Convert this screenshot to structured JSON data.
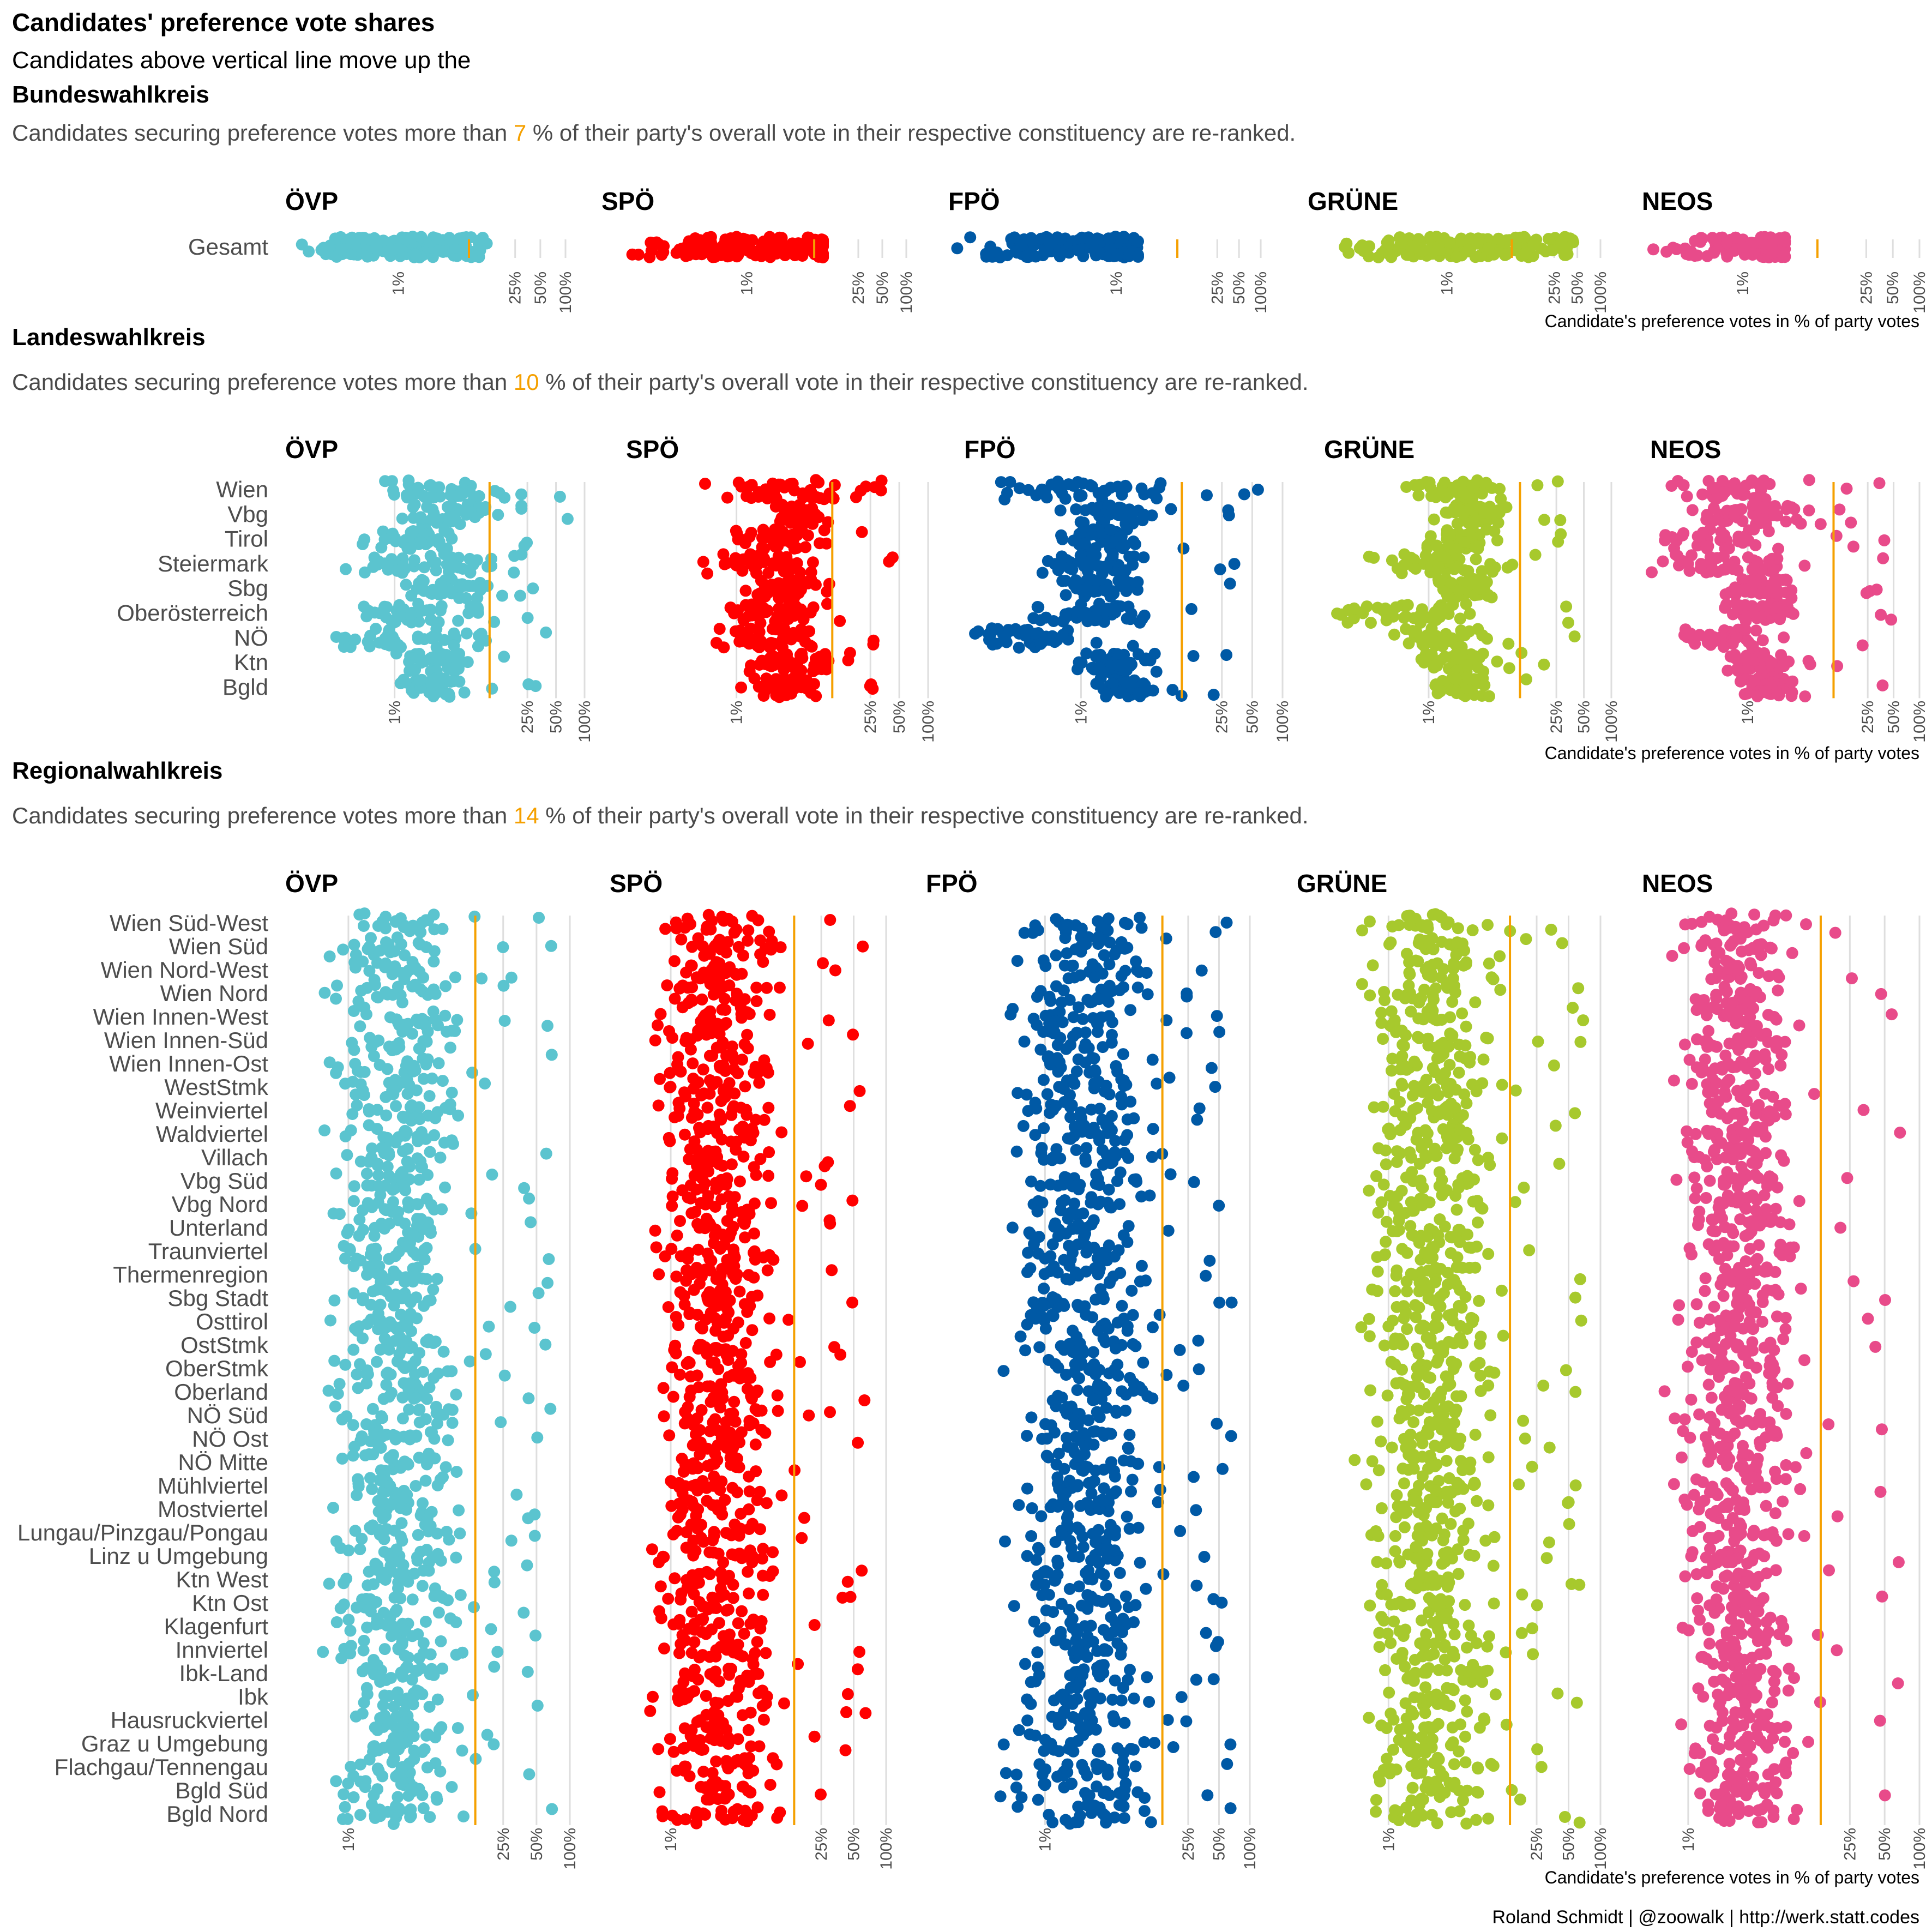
{
  "title": "Candidates' preference vote shares",
  "subtitle_line1": "Candidates above vertical line move up the",
  "subtitle_line2": "Bundeswahlkreis",
  "caption": "Roland Schmidt | @zoowalk | http://werk.statt.codes",
  "x_axis_label": "Candidate's preference votes in % of party votes",
  "desc_before": "Candidates securing preference votes more than",
  "desc_after": "% of their party's overall vote in their respective constituency are re-ranked.",
  "colors": {
    "ÖVP": "#5bc4cf",
    "SPÖ": "#ff0000",
    "FPÖ": "#0059a5",
    "GRÜNE": "#a7c92d",
    "NEOS": "#e84b8a",
    "threshold": "#f5a000",
    "grid": "#dedede"
  },
  "chart_data": {
    "type": "scatter",
    "description": "Jittered strip plot of candidate preference-vote shares per party and constituency level; log-scaled x axis.",
    "x_scale": "log",
    "x_ticks": [
      {
        "value": 1,
        "label": "1%"
      },
      {
        "value": 25,
        "label": "25%"
      },
      {
        "value": 50,
        "label": "50%"
      },
      {
        "value": 100,
        "label": "100%"
      }
    ],
    "parties": [
      "ÖVP",
      "SPÖ",
      "FPÖ",
      "GRÜNE",
      "NEOS"
    ],
    "panels": [
      {
        "level": "Bundeswahlkreis",
        "show_heading": false,
        "threshold": 7,
        "rows": [
          "Gesamt"
        ],
        "xlim": {
          "ÖVP": [
            0.03,
            100
          ],
          "SPÖ": [
            0.01,
            100
          ],
          "FPÖ": [
            0.003,
            100
          ],
          "GRÜNE": [
            0.01,
            100
          ],
          "NEOS": [
            0.05,
            100
          ]
        },
        "ranges": {
          "ÖVP": {
            "Gesamt": [
              0.035,
              1.2,
              12,
              70
            ]
          },
          "SPÖ": {
            "Gesamt": [
              0.012,
              4,
              9,
              12
            ]
          },
          "FPÖ": {
            "Gesamt": [
              0.003,
              0.5,
              2,
              40
            ]
          },
          "GRÜNE": {
            "Gesamt": [
              0.012,
              1.3,
              45,
              60
            ]
          },
          "NEOS": {
            "Gesamt": [
              0.055,
              1.6,
              3,
              80
            ]
          }
        }
      },
      {
        "level": "Landeswahlkreis",
        "show_heading": true,
        "threshold": 10,
        "rows": [
          "Wien",
          "Vbg",
          "Tirol",
          "Steiermark",
          "Sbg",
          "Oberösterreich",
          "NÖ",
          "Ktn",
          "Bgld"
        ],
        "xlim": {
          "ÖVP": [
            0.05,
            100
          ],
          "SPÖ": [
            0.05,
            100
          ],
          "FPÖ": [
            0.05,
            100
          ],
          "GRÜNE": [
            0.05,
            100
          ],
          "NEOS": [
            0.05,
            100
          ]
        },
        "ranges": {
          "ÖVP": {
            "Wien": [
              0.2,
              5,
              70,
              4
            ],
            "Vbg": [
              1,
              6,
              70,
              3
            ],
            "Tirol": [
              0.3,
              3,
              70,
              2
            ],
            "Steiermark": [
              0.1,
              4,
              30,
              3
            ],
            "Sbg": [
              0.8,
              6,
              35,
              2
            ],
            "Oberösterreich": [
              0.2,
              3,
              40,
              3
            ],
            "NÖ": [
              0.06,
              3,
              45,
              3
            ],
            "Ktn": [
              0.8,
              4,
              40,
              2
            ],
            "Bgld": [
              1,
              3,
              45,
              3
            ]
          },
          "SPÖ": {
            "Wien": [
              0.3,
              6,
              40,
              3
            ],
            "Vbg": [
              2,
              6,
              40,
              2
            ],
            "Tirol": [
              0.5,
              4,
              40,
              3
            ],
            "Steiermark": [
              0.3,
              3,
              60,
              3
            ],
            "Sbg": [
              1,
              4,
              60,
              3
            ],
            "Oberösterreich": [
              0.5,
              3,
              30,
              2
            ],
            "NÖ": [
              0.5,
              3,
              40,
              3
            ],
            "Ktn": [
              1,
              6,
              50,
              2
            ],
            "Bgld": [
              1,
              4,
              50,
              3
            ]
          },
          "FPÖ": {
            "Wien": [
              0.08,
              2,
              60,
              4
            ],
            "Vbg": [
              0.5,
              3,
              60,
              4
            ],
            "Tirol": [
              0.4,
              2,
              30,
              3
            ],
            "Steiermark": [
              0.3,
              2,
              40,
              3
            ],
            "Sbg": [
              0.5,
              2,
              35,
              3
            ],
            "Oberösterreich": [
              0.2,
              2,
              45,
              3
            ],
            "NÖ": [
              0.05,
              0.4,
              60,
              3
            ],
            "Ktn": [
              0.6,
              3,
              40,
              3
            ],
            "Bgld": [
              1,
              3,
              60,
              3
            ]
          },
          "GRÜNE": {
            "Wien": [
              0.3,
              3,
              30,
              4
            ],
            "Vbg": [
              1,
              4,
              30,
              2
            ],
            "Tirol": [
              0.5,
              3,
              40,
              3
            ],
            "Steiermark": [
              0.15,
              2,
              45,
              3
            ],
            "Sbg": [
              1,
              3,
              40,
              2
            ],
            "Oberösterreich": [
              0.05,
              1,
              45,
              3
            ],
            "NÖ": [
              0.3,
              2,
              40,
              3
            ],
            "Ktn": [
              0.6,
              3,
              45,
              3
            ],
            "Bgld": [
              0.8,
              3,
              45,
              2
            ]
          },
          "NEOS": {
            "Wien": [
              0.05,
              1,
              50,
              4
            ],
            "Vbg": [
              0.1,
              2,
              40,
              3
            ],
            "Tirol": [
              0.06,
              1,
              45,
              3
            ],
            "Steiermark": [
              0.05,
              1,
              50,
              2
            ],
            "Sbg": [
              0.3,
              2,
              45,
              3
            ],
            "Oberösterreich": [
              0.3,
              2,
              60,
              3
            ],
            "NÖ": [
              0.1,
              0.8,
              40,
              3
            ],
            "Ktn": [
              0.3,
              2,
              35,
              3
            ],
            "Bgld": [
              0.5,
              2,
              40,
              3
            ]
          }
        }
      },
      {
        "level": "Regionalwahlkreis",
        "show_heading": true,
        "threshold": 14,
        "rows": [
          "Wien Süd-West",
          "Wien Süd",
          "Wien Nord-West",
          "Wien Nord",
          "Wien Innen-West",
          "Wien Innen-Süd",
          "Wien Innen-Ost",
          "WestStmk",
          "Weinviertel",
          "Waldviertel",
          "Villach",
          "Vbg Süd",
          "Vbg Nord",
          "Unterland",
          "Traunviertel",
          "Thermenregion",
          "Sbg Stadt",
          "Osttirol",
          "OstStmk",
          "OberStmk",
          "Oberland",
          "NÖ Süd",
          "NÖ Ost",
          "NÖ Mitte",
          "Mühlviertel",
          "Mostviertel",
          "Lungau/Pinzgau/Pongau",
          "Linz u Umgebung",
          "Ktn West",
          "Ktn Ost",
          "Klagenfurt",
          "Innviertel",
          "Ibk-Land",
          "Ibk",
          "Hausruckviertel",
          "Graz u Umgebung",
          "Flachgau/Tennengau",
          "Bgld Süd",
          "Bgld Nord"
        ],
        "xlim": {
          "ÖVP": [
            0.2,
            100
          ],
          "SPÖ": [
            0.2,
            100
          ],
          "FPÖ": [
            0.05,
            100
          ],
          "GRÜNE": [
            0.1,
            100
          ],
          "NEOS": [
            0.3,
            100
          ]
        },
        "ranges": {
          "ÖVP": {
            "_default": [
              0.5,
              4,
              70,
              2
            ]
          },
          "SPÖ": {
            "_default": [
              0.5,
              4,
              70,
              2
            ]
          },
          "FPÖ": {
            "_default": [
              0.3,
              4,
              70,
              2
            ]
          },
          "GRÜNE": {
            "_default": [
              0.4,
              4,
              70,
              2
            ]
          },
          "NEOS": {
            "_default": [
              0.6,
              4,
              70,
              1
            ]
          }
        }
      }
    ]
  }
}
